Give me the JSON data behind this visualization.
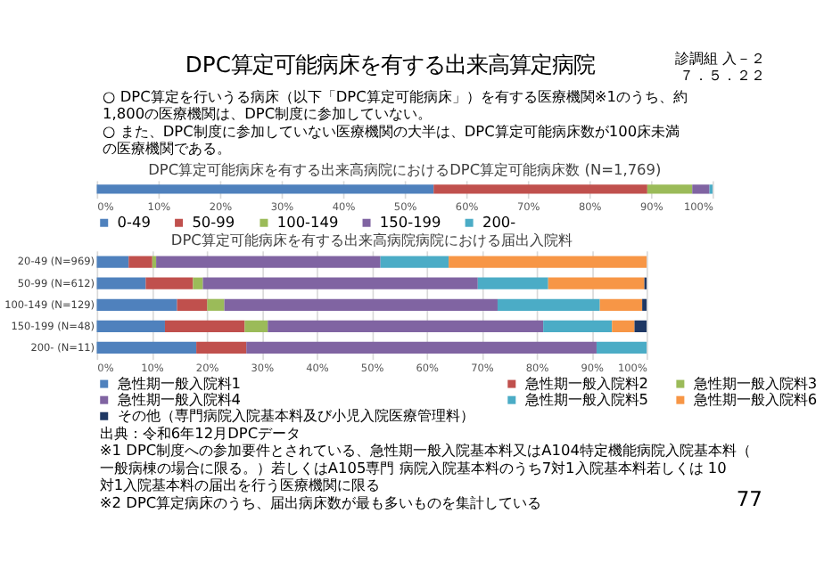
{
  "chart_data": [
    {
      "type": "bar",
      "orientation": "horizontal",
      "stacked": true,
      "title": "DPC算定可能病床を有する出来高病院におけるDPC算定可能病床数 (N=1,769)",
      "annotations": [
        "DPC算定可能病床を有する出来高算定病院",
        "診調組 入－２７．５．２２",
        "○ DPC算定を行いうる病床（以下「DPC算定可能病床」）を有する医療機関※1のうち、約1,800の医療機関は、DPC制度に参加していない。",
        "○ また、DPC制度に参加していない医療機関の大半は、DPC算定可能病床数が100床未満の医療機関である。"
      ],
      "categories": [
        null
      ],
      "series": [
        {
          "name": "0-49",
          "color": "#4f81bd",
          "values": [
            54.7
          ]
        },
        {
          "name": "50-99",
          "color": "#c0504d",
          "values": [
            34.7
          ]
        },
        {
          "name": "100-149",
          "color": "#9bbb59",
          "values": [
            7.3
          ]
        },
        {
          "name": "150-199",
          "color": "#8064a2",
          "values": [
            2.8
          ]
        },
        {
          "name": "200-",
          "color": "#4bacc6",
          "values": [
            0.5
          ]
        }
      ],
      "xlim": [
        0,
        100
      ],
      "xticks": [
        {
          "value": 0,
          "label": "0%"
        },
        {
          "value": 10,
          "label": "10%"
        },
        {
          "value": 20,
          "label": "20%"
        },
        {
          "value": 30,
          "label": "30%"
        },
        {
          "value": 40,
          "label": "40%"
        },
        {
          "value": 50,
          "label": "50%"
        },
        {
          "value": 60,
          "label": "60%"
        },
        {
          "value": 70,
          "label": "70%"
        },
        {
          "value": 80,
          "label": "80%"
        },
        {
          "value": 90,
          "label": "90%"
        },
        {
          "value": 100,
          "label": "100%"
        }
      ],
      "grid": "x",
      "legend": "bottom"
    },
    {
      "type": "bar",
      "orientation": "horizontal",
      "stacked": true,
      "title": "DPC算定可能病床を有する出来高病院病院における届出入院料",
      "annotations": [
        "出典：令和6年12月DPCデータ",
        "※1 DPC制度への参加要件とされている、急性期一般入院基本料又はA104特定機能病院入院基本料（一般病棟の場合に限る。）若しくはA105専門 病院入院基本料のうち7対1入院基本料若しくは 10 対1入院基本料の届出を行う医療機関に限る",
        "※2 DPC算定病床のうち、届出病床数が最も多いものを集計している",
        "77"
      ],
      "categories": [
        "20-49 (N=969)",
        "50-99 (N=612)",
        "100-149 (N=129)",
        "150-199 (N=48)",
        "200- (N=11)"
      ],
      "series": [
        {
          "name": "急性期一般入院料1",
          "color": "#4f81bd",
          "values": [
            5.8,
            8.9,
            14.6,
            12.4,
            18.1
          ]
        },
        {
          "name": "急性期一般入院料2",
          "color": "#c0504d",
          "values": [
            4.3,
            8.6,
            5.5,
            14.5,
            9.1
          ]
        },
        {
          "name": "急性期一般入院料3",
          "color": "#9bbb59",
          "values": [
            0.7,
            1.8,
            3.1,
            4.2,
            0
          ]
        },
        {
          "name": "急性期一般入院料4",
          "color": "#8064a2",
          "values": [
            40.8,
            50.0,
            49.7,
            50.1,
            63.7
          ]
        },
        {
          "name": "急性期一般入院料5",
          "color": "#4bacc6",
          "values": [
            12.4,
            12.8,
            18.6,
            12.5,
            9.1
          ]
        },
        {
          "name": "急性期一般入院料6",
          "color": "#f79646",
          "values": [
            36.0,
            17.5,
            7.7,
            4.1,
            0
          ]
        },
        {
          "name": "その他（専門病院入院基本料及び小児入院医療管理料）",
          "color": "#1f3864",
          "values": [
            0,
            0.4,
            0.8,
            2.2,
            0
          ]
        }
      ],
      "xlim": [
        0,
        100
      ],
      "xticks": [
        {
          "value": 0,
          "label": "0%"
        },
        {
          "value": 10,
          "label": "10%"
        },
        {
          "value": 20,
          "label": "20%"
        },
        {
          "value": 30,
          "label": "30%"
        },
        {
          "value": 40,
          "label": "40%"
        },
        {
          "value": 50,
          "label": "50%"
        },
        {
          "value": 60,
          "label": "60%"
        },
        {
          "value": 70,
          "label": "70%"
        },
        {
          "value": 80,
          "label": "80%"
        },
        {
          "value": 90,
          "label": "90%"
        },
        {
          "value": 100,
          "label": "100%"
        }
      ],
      "grid": "x",
      "legend": "bottom"
    }
  ]
}
